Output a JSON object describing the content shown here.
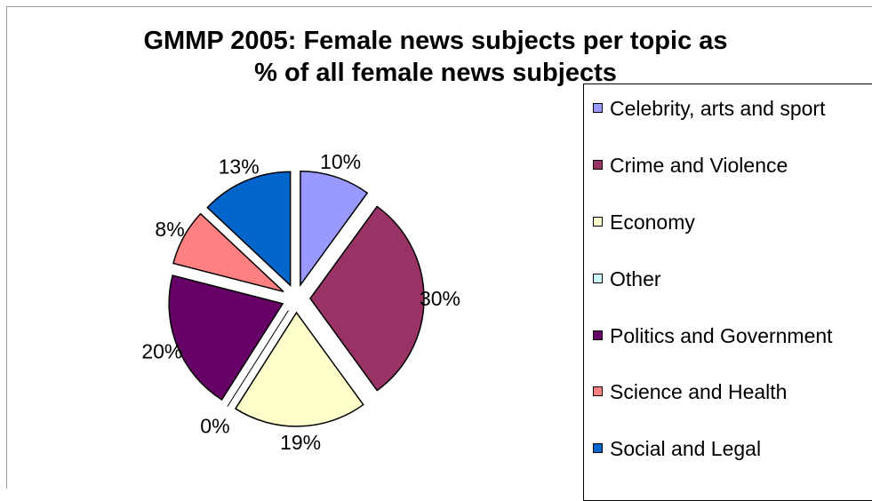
{
  "chart_data": {
    "type": "pie",
    "title_lines": [
      "GMMP 2005: Female news subjects per topic as",
      "% of all female news subjects"
    ],
    "slices": [
      {
        "label": "Celebrity, arts and sport",
        "value": 10,
        "value_label": "10%",
        "color": "#9999ff"
      },
      {
        "label": "Crime and Violence",
        "value": 30,
        "value_label": "30%",
        "color": "#993366"
      },
      {
        "label": "Economy",
        "value": 19,
        "value_label": "19%",
        "color": "#ffffcc"
      },
      {
        "label": "Other",
        "value": 0,
        "value_label": "0%",
        "color": "#ccffff"
      },
      {
        "label": "Politics and Government",
        "value": 20,
        "value_label": "20%",
        "color": "#660066"
      },
      {
        "label": "Science and Health",
        "value": 8,
        "value_label": "8%",
        "color": "#ff8080"
      },
      {
        "label": "Social and Legal",
        "value": 13,
        "value_label": "13%",
        "color": "#0066cc"
      }
    ],
    "legend_position": "right",
    "exploded": true
  }
}
